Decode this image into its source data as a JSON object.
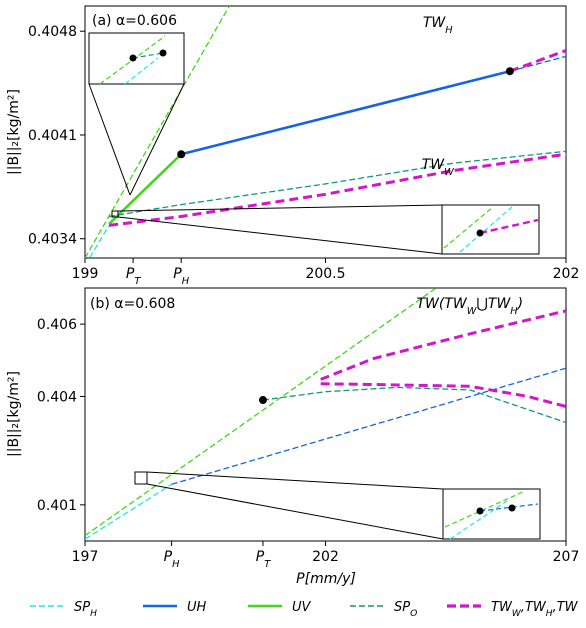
{
  "colors": {
    "sph": "#22e5f0",
    "uh": "#1565e0",
    "uv": "#44d61a",
    "spo": "#149680",
    "tw": "#d216c8"
  },
  "chart_data": [
    {
      "type": "line",
      "panel_label": "(a) α=0.606",
      "ylabel": "||B||₂[kg/m²]",
      "xlim": [
        199,
        202
      ],
      "ylim": [
        0.40327,
        0.40497
      ],
      "xticks": [
        {
          "value": 199,
          "label": "199"
        },
        {
          "value": 199.3,
          "label": "P_T"
        },
        {
          "value": 199.6,
          "label": "P_H"
        },
        {
          "value": 200.5,
          "label": "200.5"
        },
        {
          "value": 202,
          "label": "202"
        }
      ],
      "yticks": [
        {
          "value": 0.4034,
          "label": "0.4034"
        },
        {
          "value": 0.4041,
          "label": "0.4041"
        },
        {
          "value": 0.4048,
          "label": "0.4048"
        }
      ],
      "annotations": [
        {
          "text": "TW_H",
          "x": 201.2,
          "y": 0.40483
        },
        {
          "text": "TW_W",
          "x": 201.2,
          "y": 0.40387
        }
      ],
      "series": [
        {
          "key": "sph",
          "style": "dashed",
          "x": [
            199,
            199.15
          ],
          "y": [
            0.40322,
            0.40349
          ]
        },
        {
          "key": "uv",
          "style": "dashed",
          "x": [
            199,
            199.9
          ],
          "y": [
            0.40327,
            0.40497
          ]
        },
        {
          "key": "uv",
          "style": "solid",
          "x": [
            199.15,
            199.6
          ],
          "y": [
            0.4035,
            0.40397
          ]
        },
        {
          "key": "uh",
          "style": "solid",
          "x": [
            199.6,
            201.65
          ],
          "y": [
            0.40397,
            0.40453
          ]
        },
        {
          "key": "uh",
          "style": "dashed",
          "x": [
            201.65,
            202
          ],
          "y": [
            0.40453,
            0.40463
          ]
        },
        {
          "key": "spo",
          "style": "dashed",
          "x": [
            199.15,
            199.6,
            200.5,
            201.3,
            202
          ],
          "y": [
            0.40355,
            0.40363,
            0.40377,
            0.40391,
            0.40399
          ]
        },
        {
          "key": "tw",
          "style": "dashed",
          "x": [
            199.15,
            199.6,
            200.5,
            201.3,
            202
          ],
          "y": [
            0.40349,
            0.40355,
            0.4037,
            0.40386,
            0.40397
          ]
        },
        {
          "key": "tw",
          "style": "dashed",
          "x": [
            201.65,
            202
          ],
          "y": [
            0.40453,
            0.40467
          ]
        }
      ],
      "points": [
        {
          "x": 199.6,
          "y": 0.40397
        },
        {
          "x": 201.65,
          "y": 0.40453
        }
      ]
    },
    {
      "type": "line",
      "panel_label": "(b) α=0.608",
      "ylabel": "||B||₂[kg/m²]",
      "xlabel": "P[mm/y]",
      "xlim": [
        197,
        207
      ],
      "ylim": [
        0.4,
        0.407
      ],
      "xticks": [
        {
          "value": 197,
          "label": "197"
        },
        {
          "value": 198.8,
          "label": "P_H"
        },
        {
          "value": 200.7,
          "label": "P_T"
        },
        {
          "value": 202,
          "label": "202"
        },
        {
          "value": 207,
          "label": "207"
        }
      ],
      "yticks": [
        {
          "value": 0.401,
          "label": "0.401"
        },
        {
          "value": 0.404,
          "label": "0.404"
        },
        {
          "value": 0.406,
          "label": "0.406"
        }
      ],
      "annotations": [
        {
          "text": "TW(TW_W⋃TW_H)",
          "x": 205,
          "y": 0.40645
        }
      ],
      "series": [
        {
          "key": "sph",
          "style": "dashed",
          "x": [
            197,
            198.8
          ],
          "y": [
            0.40005,
            0.40157
          ]
        },
        {
          "key": "uv",
          "style": "dashed",
          "x": [
            197,
            204.3
          ],
          "y": [
            0.40015,
            0.407
          ]
        },
        {
          "key": "uh",
          "style": "dashed",
          "x": [
            198.8,
            207
          ],
          "y": [
            0.40157,
            0.40478
          ]
        },
        {
          "key": "spo",
          "style": "dashed",
          "x": [
            200.7,
            202,
            203.5,
            205,
            207
          ],
          "y": [
            0.4039,
            0.40413,
            0.40425,
            0.40418,
            0.40328
          ]
        },
        {
          "key": "tw",
          "style": "dashed",
          "x": [
            201.9,
            203,
            205,
            207
          ],
          "y": [
            0.40447,
            0.40505,
            0.40573,
            0.40637
          ]
        },
        {
          "key": "tw",
          "style": "dashed",
          "x": [
            201.9,
            203,
            205,
            206.2,
            207
          ],
          "y": [
            0.40435,
            0.40433,
            0.40428,
            0.404,
            0.40372
          ]
        }
      ],
      "points": [
        {
          "x": 200.7,
          "y": 0.4039
        }
      ]
    }
  ],
  "legend": [
    {
      "key": "sph",
      "label": "SP_H"
    },
    {
      "key": "uh",
      "label": "UH"
    },
    {
      "key": "uv",
      "label": "UV"
    },
    {
      "key": "spo",
      "label": "SP_O"
    },
    {
      "key": "tw",
      "label": "TW_W,TW_H,TW"
    }
  ]
}
